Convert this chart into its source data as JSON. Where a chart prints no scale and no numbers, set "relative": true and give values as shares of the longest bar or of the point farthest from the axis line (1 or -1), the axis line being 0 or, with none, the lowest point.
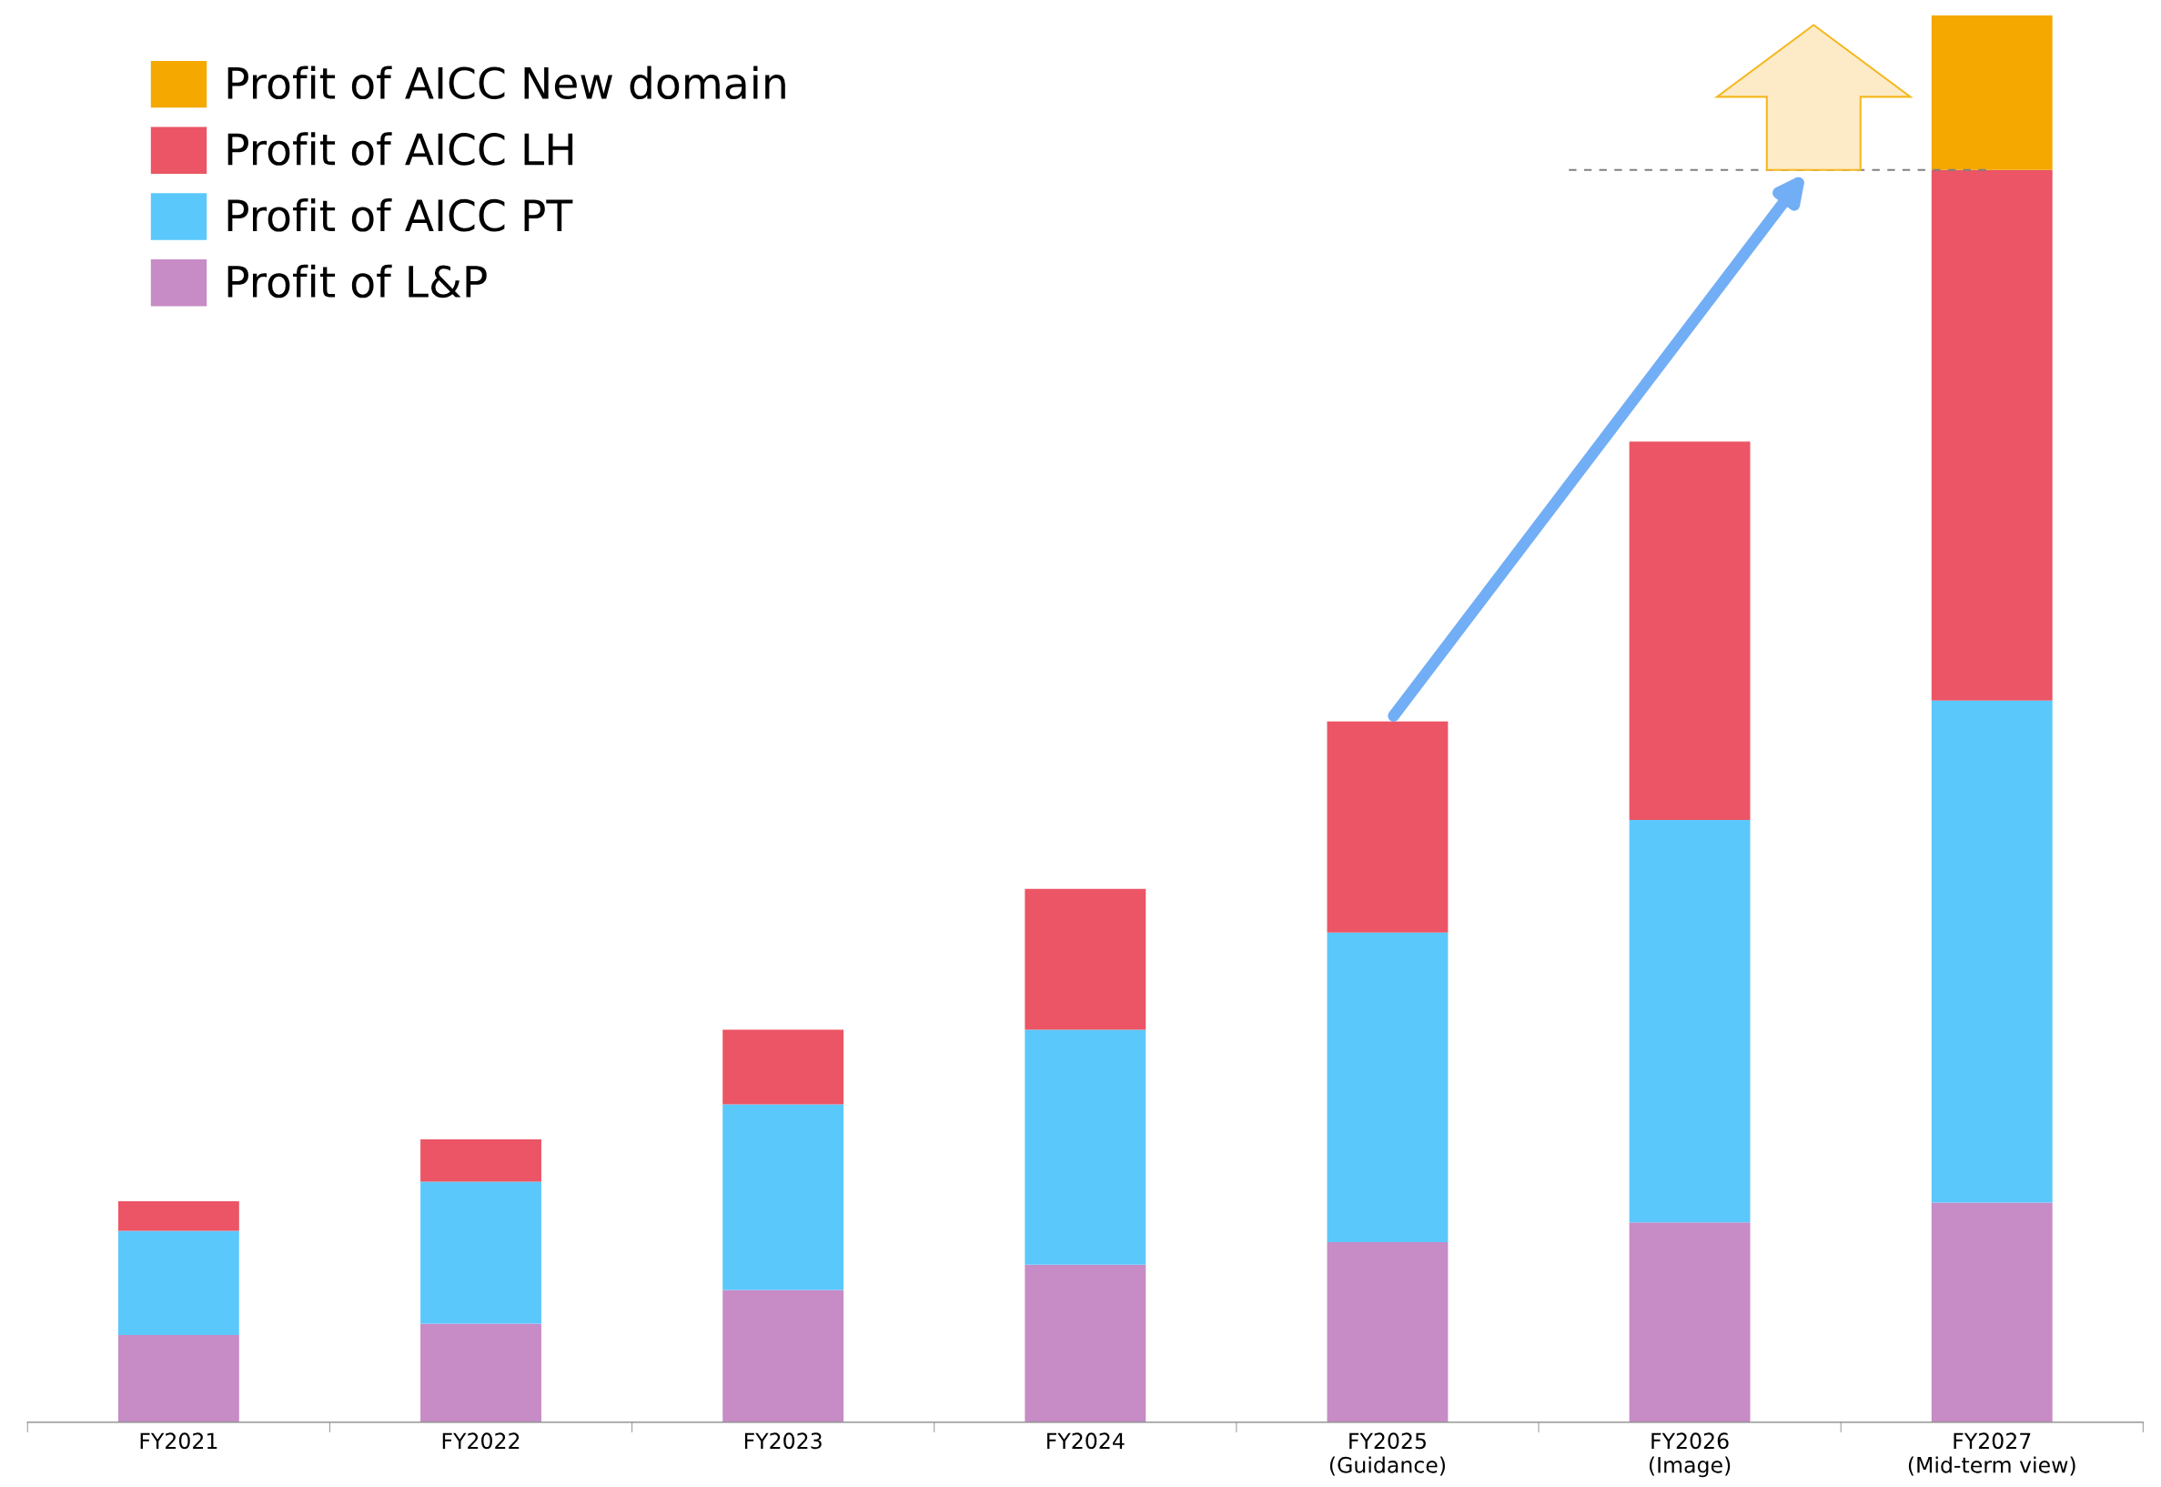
{
  "chart_data": {
    "type": "bar",
    "stacked": true,
    "relative": true,
    "legend": "top left",
    "categories": [
      "FY2021",
      "FY2022",
      "FY2023",
      "FY2024",
      "FY2025\n(Guidance)",
      "FY2026\n(Image)",
      "FY2027\n(Mid-term view)"
    ],
    "series": [
      {
        "name": "Profit of L&P",
        "color": "#c78bc6",
        "values": [
          0.062,
          0.07,
          0.094,
          0.112,
          0.128,
          0.142,
          0.156
        ]
      },
      {
        "name": "Profit of AICC PT",
        "color": "#5bc8fc",
        "values": [
          0.074,
          0.101,
          0.132,
          0.167,
          0.22,
          0.286,
          0.357
        ]
      },
      {
        "name": "Profit of AICC LH",
        "color": "#eb5565",
        "values": [
          0.021,
          0.03,
          0.053,
          0.1,
          0.15,
          0.269,
          0.377
        ]
      },
      {
        "name": "Profit of AICC New domain",
        "color": "#f5a800",
        "values": [
          null,
          null,
          null,
          null,
          null,
          null,
          0.11
        ]
      }
    ],
    "ref_lines": [
      {
        "axis": "y",
        "value": 0.89,
        "color": "#808080",
        "line_style": "dashed"
      }
    ]
  }
}
